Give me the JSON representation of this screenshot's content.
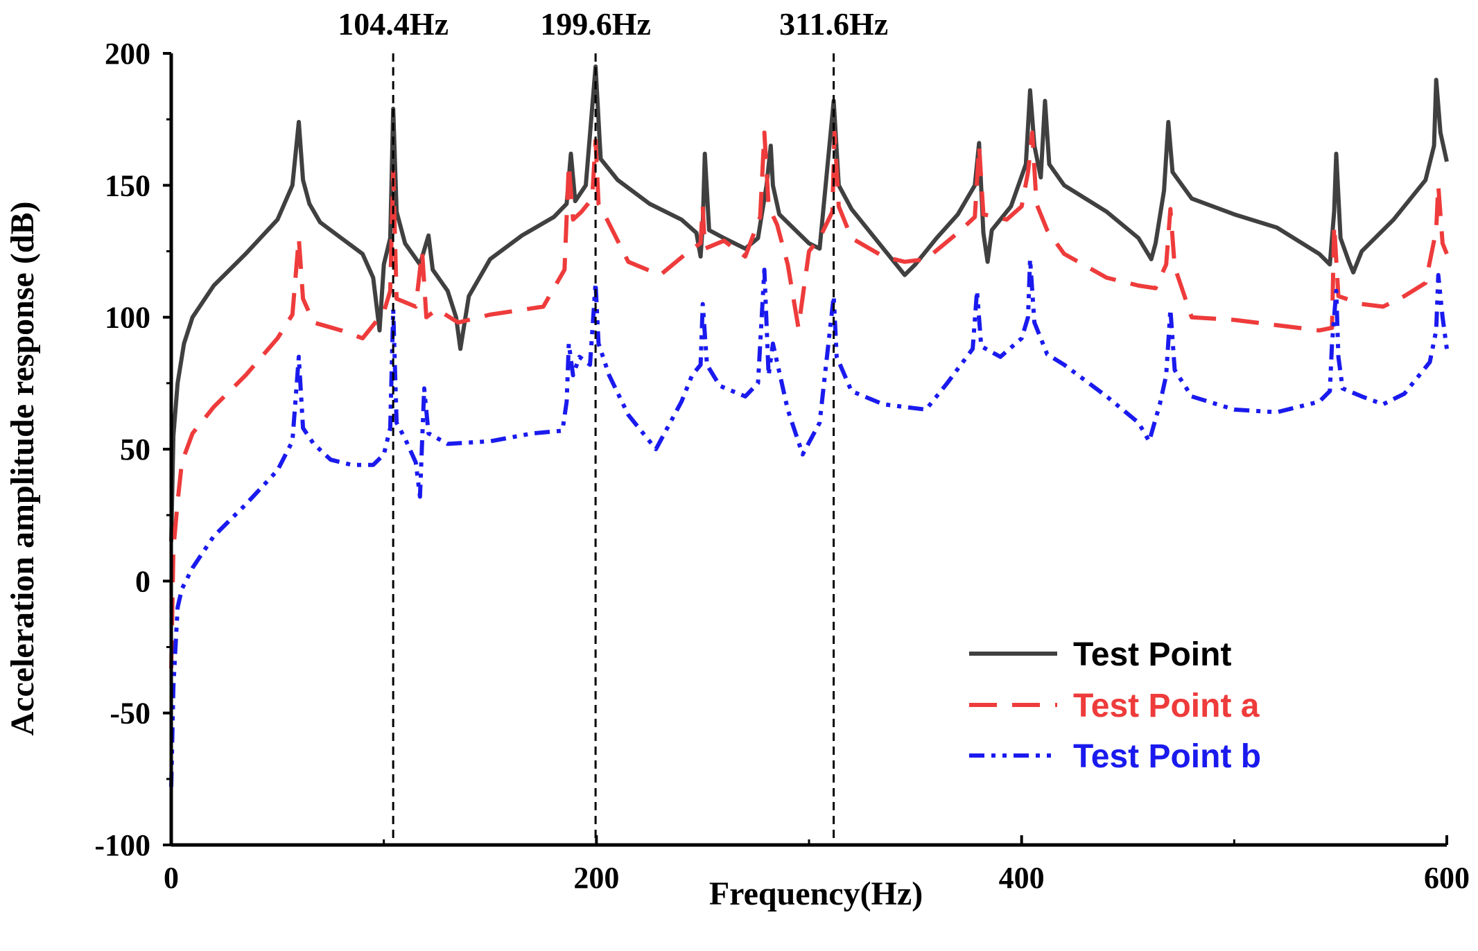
{
  "chart_data": {
    "type": "line",
    "title": "",
    "xlabel": "Frequency(Hz)",
    "ylabel": "Acceleration amplitude response (dB)",
    "xlim": [
      0,
      600
    ],
    "ylim": [
      -100,
      200
    ],
    "xticks": [
      0,
      200,
      400,
      600
    ],
    "yticks": [
      -100,
      -50,
      0,
      50,
      100,
      150,
      200
    ],
    "grid": false,
    "legend_position": "bottom-right",
    "annotations": [
      {
        "x": 104.4,
        "label": "104.4Hz"
      },
      {
        "x": 199.6,
        "label": "199.6Hz"
      },
      {
        "x": 311.6,
        "label": "311.6Hz"
      }
    ],
    "series": [
      {
        "name": "Test Point",
        "color": "#404040",
        "style": "solid",
        "points": [
          [
            0,
            15
          ],
          [
            1,
            55
          ],
          [
            3,
            75
          ],
          [
            6,
            90
          ],
          [
            10,
            100
          ],
          [
            20,
            112
          ],
          [
            35,
            124
          ],
          [
            50,
            137
          ],
          [
            57,
            150
          ],
          [
            60,
            174
          ],
          [
            62,
            152
          ],
          [
            65,
            143
          ],
          [
            70,
            136
          ],
          [
            80,
            130
          ],
          [
            90,
            124
          ],
          [
            95,
            115
          ],
          [
            98,
            95
          ],
          [
            100,
            120
          ],
          [
            103,
            130
          ],
          [
            104.4,
            179
          ],
          [
            106,
            140
          ],
          [
            110,
            128
          ],
          [
            117,
            120
          ],
          [
            121,
            131
          ],
          [
            123,
            118
          ],
          [
            130,
            110
          ],
          [
            134,
            100
          ],
          [
            136,
            88
          ],
          [
            140,
            108
          ],
          [
            150,
            122
          ],
          [
            165,
            131
          ],
          [
            180,
            138
          ],
          [
            186,
            143
          ],
          [
            188,
            162
          ],
          [
            190,
            144
          ],
          [
            195,
            150
          ],
          [
            199.6,
            195
          ],
          [
            202,
            160
          ],
          [
            210,
            152
          ],
          [
            225,
            143
          ],
          [
            240,
            137
          ],
          [
            247,
            132
          ],
          [
            249,
            123
          ],
          [
            250,
            135
          ],
          [
            251,
            162
          ],
          [
            253,
            133
          ],
          [
            260,
            130
          ],
          [
            270,
            126
          ],
          [
            276,
            130
          ],
          [
            280,
            150
          ],
          [
            282,
            165
          ],
          [
            283,
            150
          ],
          [
            286,
            139
          ],
          [
            300,
            128
          ],
          [
            305,
            126
          ],
          [
            311.6,
            182
          ],
          [
            314,
            150
          ],
          [
            320,
            141
          ],
          [
            335,
            126
          ],
          [
            342,
            119
          ],
          [
            345,
            116
          ],
          [
            350,
            120
          ],
          [
            360,
            130
          ],
          [
            370,
            139
          ],
          [
            378,
            150
          ],
          [
            380,
            166
          ],
          [
            382,
            132
          ],
          [
            384,
            121
          ],
          [
            386,
            133
          ],
          [
            395,
            142
          ],
          [
            402,
            158
          ],
          [
            404,
            186
          ],
          [
            406,
            165
          ],
          [
            409,
            153
          ],
          [
            411,
            182
          ],
          [
            413,
            158
          ],
          [
            420,
            150
          ],
          [
            440,
            140
          ],
          [
            455,
            130
          ],
          [
            461,
            122
          ],
          [
            463,
            128
          ],
          [
            467,
            148
          ],
          [
            469,
            174
          ],
          [
            471,
            155
          ],
          [
            480,
            145
          ],
          [
            500,
            139
          ],
          [
            520,
            134
          ],
          [
            540,
            124
          ],
          [
            545,
            120
          ],
          [
            547,
            140
          ],
          [
            548,
            162
          ],
          [
            550,
            130
          ],
          [
            554,
            121
          ],
          [
            556,
            117
          ],
          [
            560,
            125
          ],
          [
            575,
            137
          ],
          [
            590,
            152
          ],
          [
            594,
            165
          ],
          [
            595,
            190
          ],
          [
            597,
            170
          ],
          [
            600,
            159
          ]
        ]
      },
      {
        "name": "Test Point a",
        "color": "#ee3b3b",
        "style": "dashed",
        "points": [
          [
            0,
            -33
          ],
          [
            1,
            12
          ],
          [
            3,
            30
          ],
          [
            5,
            45
          ],
          [
            10,
            56
          ],
          [
            20,
            66
          ],
          [
            35,
            78
          ],
          [
            50,
            92
          ],
          [
            57,
            101
          ],
          [
            60,
            130
          ],
          [
            62,
            107
          ],
          [
            67,
            98
          ],
          [
            80,
            95
          ],
          [
            90,
            92
          ],
          [
            100,
            102
          ],
          [
            103,
            110
          ],
          [
            104.4,
            155
          ],
          [
            106,
            107
          ],
          [
            115,
            104
          ],
          [
            118,
            125
          ],
          [
            120,
            100
          ],
          [
            125,
            103
          ],
          [
            135,
            98
          ],
          [
            150,
            101
          ],
          [
            175,
            104
          ],
          [
            185,
            118
          ],
          [
            187,
            158
          ],
          [
            189,
            137
          ],
          [
            193,
            140
          ],
          [
            198,
            145
          ],
          [
            199.6,
            167
          ],
          [
            201,
            143
          ],
          [
            205,
            137
          ],
          [
            215,
            121
          ],
          [
            230,
            116
          ],
          [
            245,
            126
          ],
          [
            249,
            128
          ],
          [
            250,
            142
          ],
          [
            251,
            126
          ],
          [
            260,
            129
          ],
          [
            270,
            123
          ],
          [
            277,
            138
          ],
          [
            279,
            170
          ],
          [
            281,
            142
          ],
          [
            285,
            135
          ],
          [
            290,
            120
          ],
          [
            295,
            96
          ],
          [
            300,
            125
          ],
          [
            305,
            130
          ],
          [
            311,
            140
          ],
          [
            312,
            170
          ],
          [
            314,
            142
          ],
          [
            320,
            130
          ],
          [
            335,
            123
          ],
          [
            345,
            121
          ],
          [
            355,
            122
          ],
          [
            370,
            132
          ],
          [
            378,
            138
          ],
          [
            380,
            165
          ],
          [
            382,
            139
          ],
          [
            393,
            137
          ],
          [
            400,
            142
          ],
          [
            403,
            155
          ],
          [
            405,
            170
          ],
          [
            407,
            143
          ],
          [
            412,
            133
          ],
          [
            420,
            124
          ],
          [
            440,
            115
          ],
          [
            455,
            112
          ],
          [
            463,
            111
          ],
          [
            468,
            120
          ],
          [
            470,
            141
          ],
          [
            472,
            119
          ],
          [
            480,
            100
          ],
          [
            500,
            99
          ],
          [
            520,
            97
          ],
          [
            540,
            95
          ],
          [
            546,
            96
          ],
          [
            547,
            135
          ],
          [
            549,
            108
          ],
          [
            560,
            105
          ],
          [
            570,
            104
          ],
          [
            580,
            108
          ],
          [
            590,
            113
          ],
          [
            595,
            133
          ],
          [
            596,
            150
          ],
          [
            598,
            128
          ],
          [
            600,
            124
          ]
        ]
      },
      {
        "name": "Test Point b",
        "color": "#1a1aee",
        "style": "dashdotdot",
        "points": [
          [
            0,
            -78
          ],
          [
            1,
            -40
          ],
          [
            3,
            -10
          ],
          [
            5,
            -3
          ],
          [
            10,
            5
          ],
          [
            20,
            17
          ],
          [
            35,
            29
          ],
          [
            50,
            42
          ],
          [
            57,
            53
          ],
          [
            60,
            85
          ],
          [
            62,
            58
          ],
          [
            67,
            52
          ],
          [
            75,
            46
          ],
          [
            85,
            44
          ],
          [
            95,
            44
          ],
          [
            100,
            48
          ],
          [
            103,
            58
          ],
          [
            104.4,
            103
          ],
          [
            106,
            60
          ],
          [
            110,
            54
          ],
          [
            115,
            45
          ],
          [
            117,
            32
          ],
          [
            119,
            73
          ],
          [
            121,
            56
          ],
          [
            130,
            52
          ],
          [
            150,
            53
          ],
          [
            170,
            56
          ],
          [
            184,
            57
          ],
          [
            186,
            68
          ],
          [
            187,
            90
          ],
          [
            189,
            78
          ],
          [
            192,
            85
          ],
          [
            197,
            82
          ],
          [
            199.6,
            113
          ],
          [
            201,
            90
          ],
          [
            206,
            78
          ],
          [
            215,
            63
          ],
          [
            228,
            50
          ],
          [
            240,
            68
          ],
          [
            245,
            78
          ],
          [
            249,
            82
          ],
          [
            250,
            105
          ],
          [
            252,
            82
          ],
          [
            258,
            74
          ],
          [
            270,
            70
          ],
          [
            276,
            75
          ],
          [
            279,
            118
          ],
          [
            281,
            78
          ],
          [
            283,
            90
          ],
          [
            290,
            65
          ],
          [
            297,
            48
          ],
          [
            305,
            60
          ],
          [
            311.6,
            108
          ],
          [
            313,
            85
          ],
          [
            320,
            72
          ],
          [
            335,
            67
          ],
          [
            355,
            65
          ],
          [
            365,
            75
          ],
          [
            377,
            88
          ],
          [
            379,
            110
          ],
          [
            381,
            89
          ],
          [
            390,
            85
          ],
          [
            400,
            92
          ],
          [
            403,
            100
          ],
          [
            404,
            122
          ],
          [
            406,
            98
          ],
          [
            412,
            86
          ],
          [
            420,
            82
          ],
          [
            440,
            70
          ],
          [
            455,
            60
          ],
          [
            460,
            53
          ],
          [
            465,
            67
          ],
          [
            468,
            78
          ],
          [
            470,
            103
          ],
          [
            472,
            80
          ],
          [
            480,
            70
          ],
          [
            500,
            65
          ],
          [
            520,
            64
          ],
          [
            540,
            68
          ],
          [
            545,
            72
          ],
          [
            546,
            90
          ],
          [
            548,
            110
          ],
          [
            549,
            85
          ],
          [
            551,
            73
          ],
          [
            560,
            70
          ],
          [
            570,
            67
          ],
          [
            580,
            71
          ],
          [
            592,
            83
          ],
          [
            595,
            95
          ],
          [
            596,
            116
          ],
          [
            598,
            100
          ],
          [
            600,
            88
          ]
        ]
      }
    ]
  }
}
